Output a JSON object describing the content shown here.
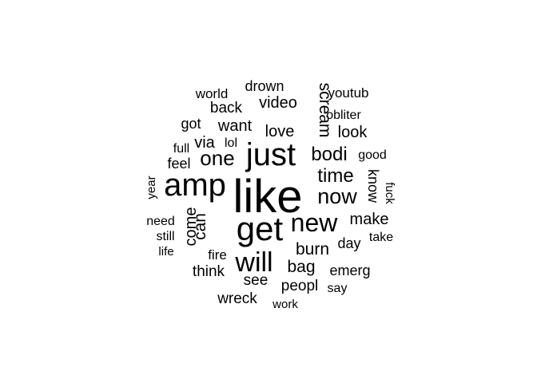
{
  "word_cloud": {
    "words": [
      {
        "id": "like",
        "text": "like"
      },
      {
        "id": "amp",
        "text": "amp"
      },
      {
        "id": "get",
        "text": "get"
      },
      {
        "id": "just",
        "text": "just"
      },
      {
        "id": "new",
        "text": "new"
      },
      {
        "id": "will",
        "text": "will"
      },
      {
        "id": "now",
        "text": "now"
      },
      {
        "id": "one",
        "text": "one"
      },
      {
        "id": "bodi",
        "text": "bodi"
      },
      {
        "id": "time",
        "text": "time"
      },
      {
        "id": "scream",
        "text": "scream"
      },
      {
        "id": "make",
        "text": "make"
      },
      {
        "id": "burn",
        "text": "burn"
      },
      {
        "id": "bag",
        "text": "bag"
      },
      {
        "id": "can",
        "text": "can"
      },
      {
        "id": "come",
        "text": "come"
      },
      {
        "id": "know",
        "text": "know"
      },
      {
        "id": "love",
        "text": "love"
      },
      {
        "id": "look",
        "text": "look"
      },
      {
        "id": "video",
        "text": "video"
      },
      {
        "id": "want",
        "text": "want"
      },
      {
        "id": "back",
        "text": "back"
      },
      {
        "id": "via",
        "text": "via"
      },
      {
        "id": "think",
        "text": "think"
      },
      {
        "id": "wreck",
        "text": "wreck"
      },
      {
        "id": "peopl",
        "text": "peopl"
      },
      {
        "id": "see",
        "text": "see"
      },
      {
        "id": "drown",
        "text": "drown"
      },
      {
        "id": "youtub",
        "text": "youtub"
      },
      {
        "id": "emerg",
        "text": "emerg"
      },
      {
        "id": "day",
        "text": "day"
      },
      {
        "id": "got",
        "text": "got"
      },
      {
        "id": "feel",
        "text": "feel"
      },
      {
        "id": "world",
        "text": "world"
      },
      {
        "id": "obliter",
        "text": "obliter"
      },
      {
        "id": "fire",
        "text": "fire"
      },
      {
        "id": "good",
        "text": "good"
      },
      {
        "id": "take",
        "text": "take"
      },
      {
        "id": "say",
        "text": "say"
      },
      {
        "id": "full",
        "text": "full"
      },
      {
        "id": "lol",
        "text": "lol"
      },
      {
        "id": "need",
        "text": "need"
      },
      {
        "id": "still",
        "text": "still"
      },
      {
        "id": "life",
        "text": "life"
      },
      {
        "id": "year",
        "text": "year"
      },
      {
        "id": "fuck",
        "text": "fuck"
      },
      {
        "id": "work",
        "text": "work"
      }
    ]
  }
}
